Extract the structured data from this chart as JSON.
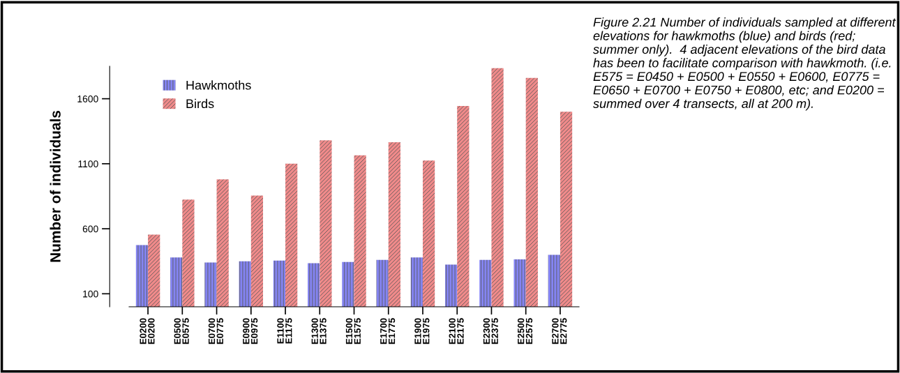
{
  "chart_data": {
    "type": "bar",
    "categories": [
      "E0200\nE0200",
      "E0500\nE0575",
      "E0700\nE0775",
      "E0900\nE0975",
      "E1100\nE1175",
      "E1300\nE1375",
      "E1500\nE1575",
      "E1700\nE1775",
      "E1900\nE1975",
      "E2100\nE2175",
      "E2300\nE2375",
      "E2500\nE2575",
      "E2700\nE2775"
    ],
    "series": [
      {
        "name": "Hawkmoths",
        "color": "#8484f2",
        "values": [
          475,
          380,
          340,
          350,
          355,
          335,
          345,
          360,
          380,
          325,
          360,
          365,
          400
        ]
      },
      {
        "name": "Birds",
        "color": "#f08a8a",
        "values": [
          555,
          825,
          980,
          855,
          1100,
          1280,
          1165,
          1265,
          1125,
          1545,
          1835,
          1760,
          1500
        ]
      }
    ],
    "ylabel": "Number of individuals",
    "ylim": [
      0,
      1850
    ],
    "yticks": [
      100,
      600,
      1100,
      1600
    ],
    "grid": false,
    "legend": "top left",
    "annotations": [
      "Figure 2.21 Number of individuals sampled at different elevations for hawkmoths (blue) and birds (red; summer only).  4 adjacent elevations of the bird data has been to facilitate comparison with hawkmoth. (i.e. E575 = E0450 + E0500 + E0550 + E0600, E0775 = E0650 + E0700 + E0750 + E0800, etc; and E0200 = summed over 4 transects, all at 200 m)."
    ]
  }
}
